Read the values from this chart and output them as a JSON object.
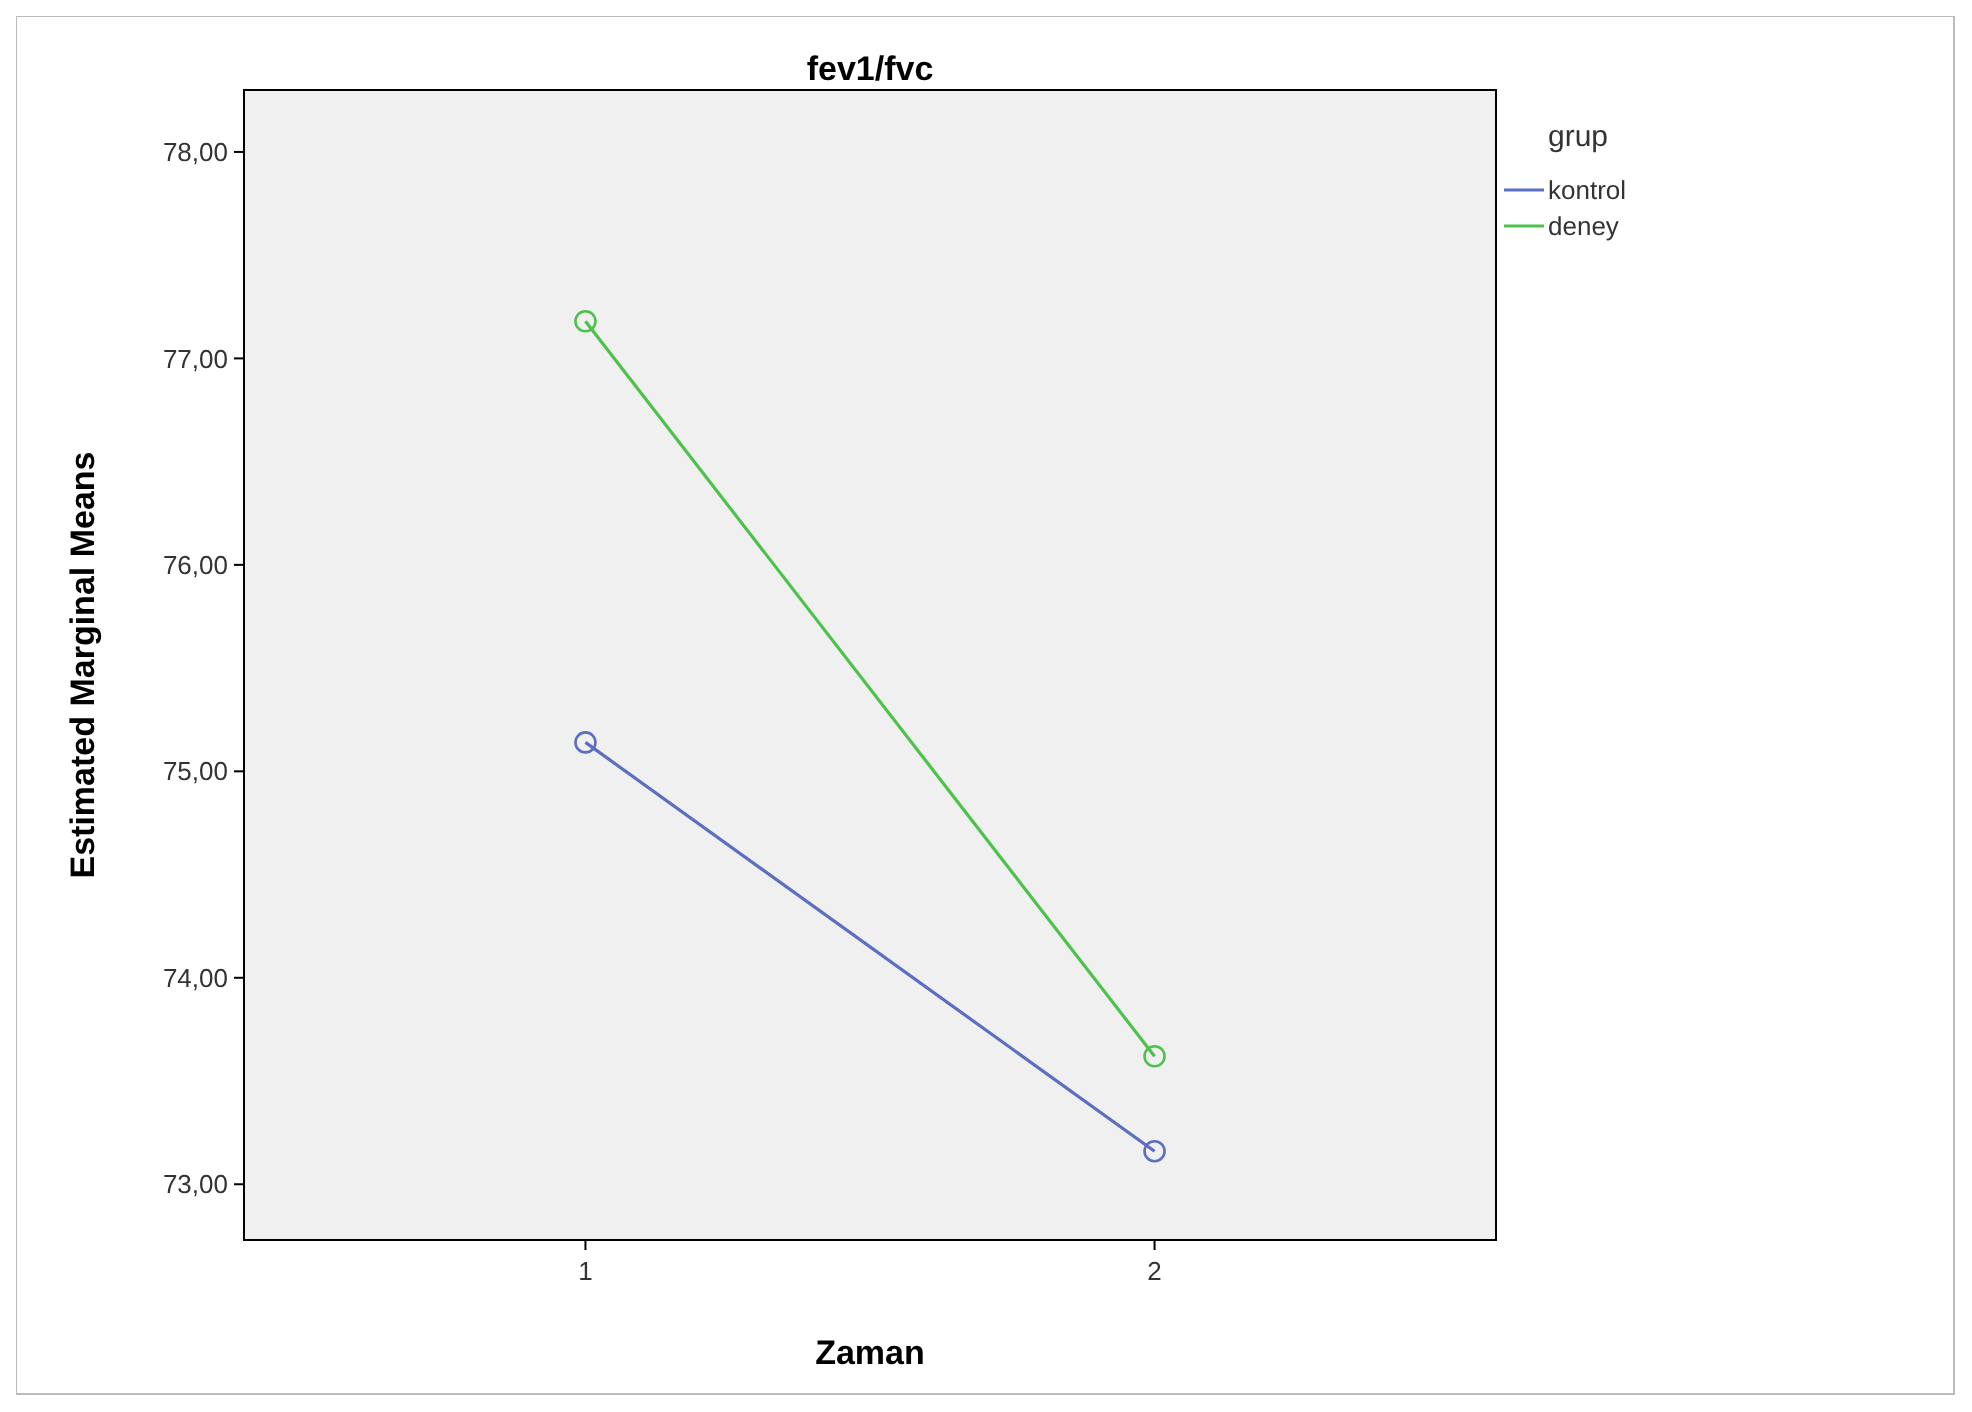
{
  "chart_data": {
    "type": "line",
    "title": "fev1/fvc",
    "xlabel": "Zaman",
    "ylabel": "Estimated Marginal Means",
    "legend_title": "grup",
    "categories": [
      "1",
      "2"
    ],
    "series": [
      {
        "name": "kontrol",
        "color": "#5b6fc2",
        "values": [
          75.14,
          73.16
        ]
      },
      {
        "name": "deney",
        "color": "#4cc24a",
        "values": [
          77.18,
          73.62
        ]
      }
    ],
    "ylim": [
      72.73,
      78.3
    ],
    "yticks": [
      {
        "value": 73,
        "label": "73,00"
      },
      {
        "value": 74,
        "label": "74,00"
      },
      {
        "value": 75,
        "label": "75,00"
      },
      {
        "value": 76,
        "label": "76,00"
      },
      {
        "value": 77,
        "label": "77,00"
      },
      {
        "value": 78,
        "label": "78,00"
      }
    ],
    "legend": "top right",
    "marker": "circle",
    "line_style": "solid",
    "grid": false
  }
}
